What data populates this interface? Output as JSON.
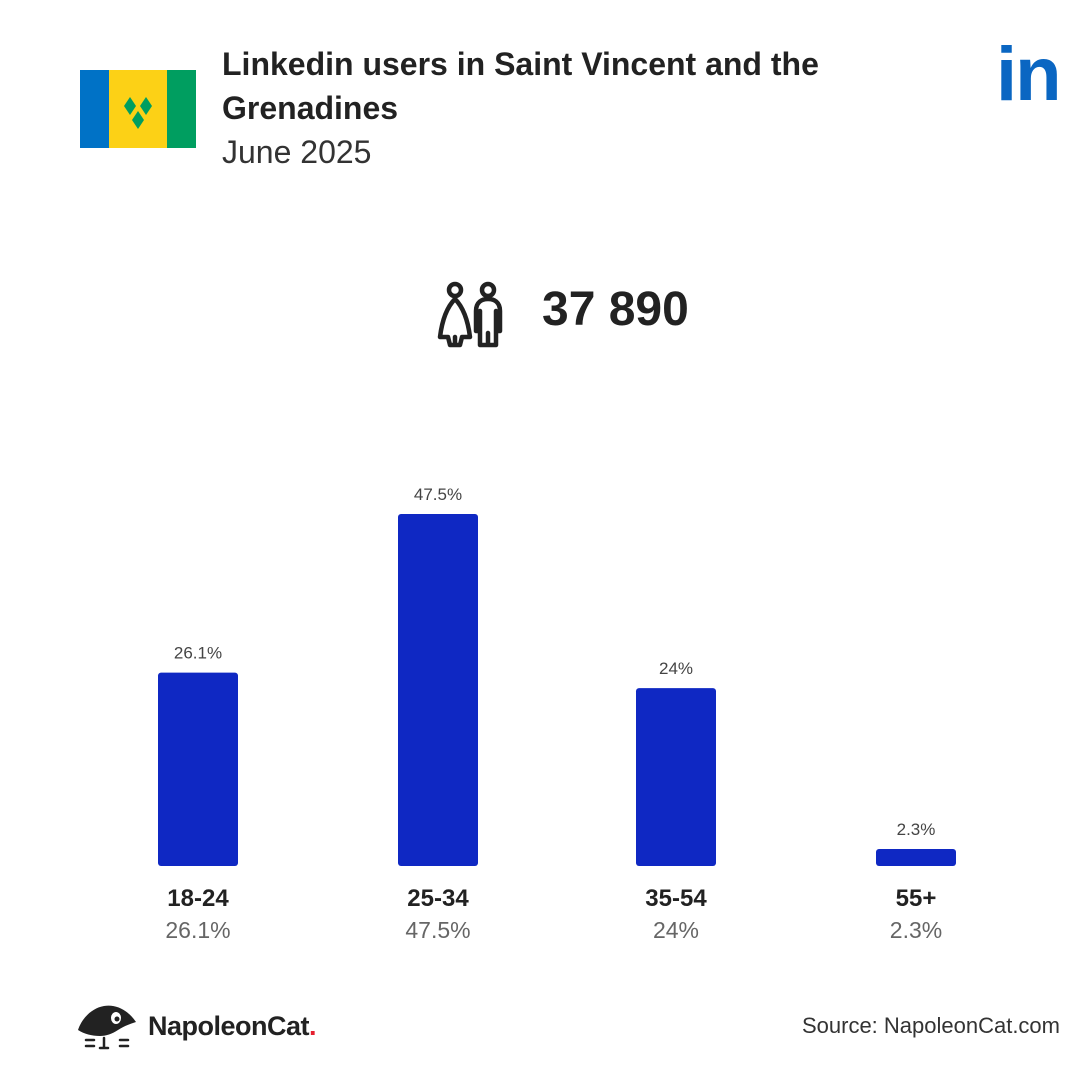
{
  "header": {
    "title": "Linkedin users in Saint Vincent and the Grenadines",
    "subtitle": "June 2025",
    "flag_icon": "saint-vincent-flag-icon",
    "logo_text": "in",
    "logo_color": "#0a66c2"
  },
  "summary": {
    "icon": "users-icon",
    "total": "37 890"
  },
  "chart_data": {
    "type": "bar",
    "categories": [
      "18-24",
      "25-34",
      "35-54",
      "55+"
    ],
    "values": [
      26.1,
      47.5,
      24,
      2.3
    ],
    "value_labels": [
      "26.1%",
      "47.5%",
      "24%",
      "2.3%"
    ],
    "title": "",
    "xlabel": "",
    "ylabel": "",
    "ylim": [
      0,
      47.5
    ],
    "grid": false,
    "legend": "none",
    "bar_color": "#0f28c3"
  },
  "footer": {
    "brand_name": "NapoleonCat",
    "brand_dot": ".",
    "brand_icon": "napoleoncat-logo-icon",
    "source": "Source: NapoleonCat.com"
  }
}
